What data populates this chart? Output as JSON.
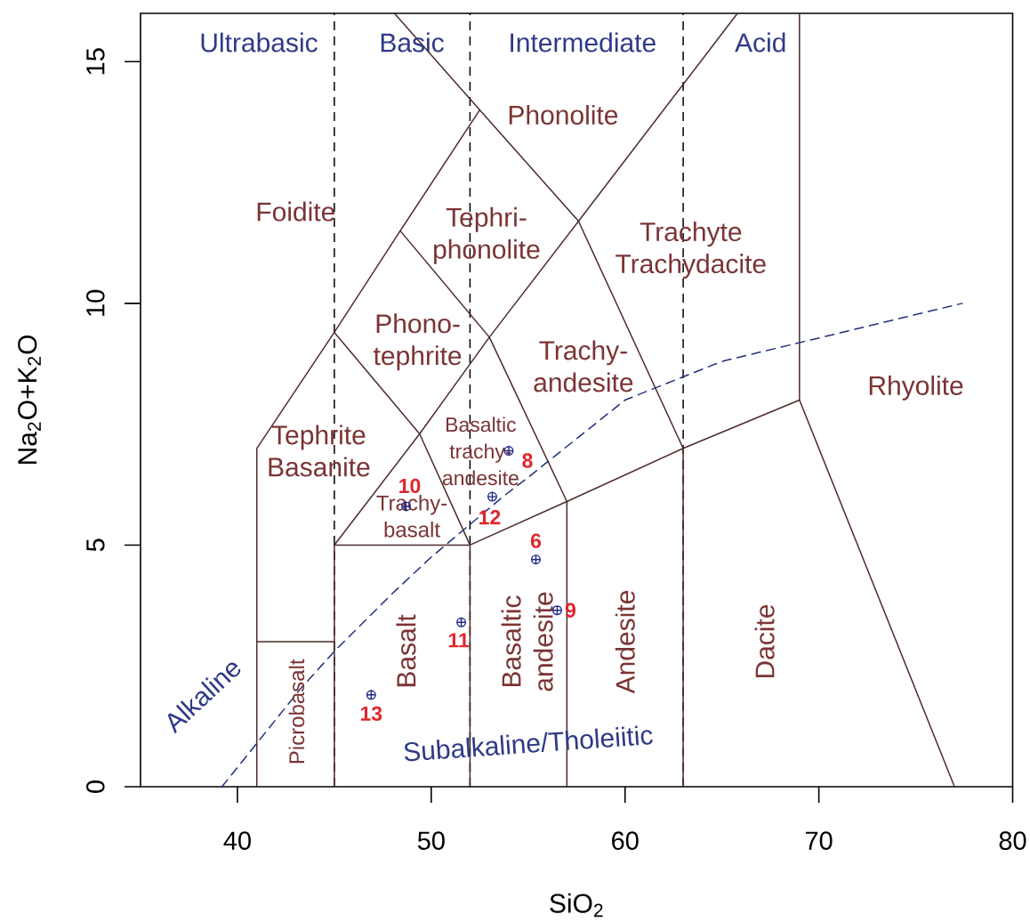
{
  "chart_data": {
    "type": "line",
    "xlabel": "SiO$_{2}$",
    "ylabel": "Na$_{2}$O+K$_{2}$O",
    "xlim": [
      35,
      80
    ],
    "ylim": [
      0,
      16
    ],
    "xticks": [
      40,
      50,
      60,
      70,
      80
    ],
    "yticks": [
      0,
      5,
      10,
      15
    ],
    "series": [
      {
        "color": "#4d2b2b",
        "x": [
          41,
          41,
          45,
          48.4,
          52.5
        ],
        "values": [
          0,
          7,
          9.4,
          11.5,
          14
        ]
      },
      {
        "color": "#4d2b2b",
        "x": [
          41,
          45
        ],
        "values": [
          3,
          3
        ]
      },
      {
        "color": "#4d2b2b",
        "x": [
          45,
          45,
          49.4,
          53,
          57.6,
          65.8
        ],
        "values": [
          0,
          5,
          7.3,
          9.3,
          11.7,
          16
        ]
      },
      {
        "color": "#4d2b2b",
        "x": [
          45,
          52,
          57,
          63,
          69,
          77
        ],
        "values": [
          5,
          5,
          5.9,
          7,
          8,
          0
        ]
      },
      {
        "color": "#4d2b2b",
        "x": [
          52,
          52,
          49.4,
          45
        ],
        "values": [
          0,
          5,
          7.3,
          9.4
        ]
      },
      {
        "color": "#4d2b2b",
        "x": [
          57,
          57,
          53,
          48.4
        ],
        "values": [
          0,
          5.9,
          9.3,
          11.5
        ]
      },
      {
        "color": "#4d2b2b",
        "x": [
          63,
          63,
          57.6,
          52.5,
          48.1
        ],
        "values": [
          0,
          7,
          11.7,
          14,
          16
        ]
      },
      {
        "color": "#4d2b2b",
        "x": [
          69,
          69
        ],
        "values": [
          8,
          16
        ]
      },
      {
        "color": "#23307a",
        "line_style": "dashed",
        "x": [
          39.2,
          40,
          43.2,
          45,
          48,
          50,
          53.7,
          55,
          60,
          65,
          77.4
        ],
        "values": [
          0,
          0.4,
          2,
          2.8,
          4,
          4.75,
          6,
          6.4,
          8,
          8.8,
          10
        ]
      },
      {
        "type": "scatter",
        "marker": "cross",
        "color": "#1f2a8a",
        "x": [
          54.0,
          53.15,
          48.7,
          55.4,
          56.5,
          51.55,
          46.9
        ],
        "values": [
          6.95,
          6.0,
          5.8,
          4.7,
          3.65,
          3.4,
          1.9
        ]
      }
    ],
    "ref_lines": [
      {
        "axis": "x",
        "value": 45,
        "line_style": "dashed",
        "color": "#000000"
      },
      {
        "axis": "x",
        "value": 52,
        "line_style": "dashed",
        "color": "#000000"
      },
      {
        "axis": "x",
        "value": 63,
        "line_style": "dashed",
        "color": "#000000"
      }
    ],
    "annotations": [
      "Ultrabasic",
      "Basic",
      "Intermediate",
      "Acid",
      "Alkaline",
      "Subalkaline/Tholeiitic",
      "Foidite",
      "Phonolite",
      "Tephri-phonolite",
      "Trachyte Trachydacite",
      "Phono-tephrite",
      "Trachy-andesite",
      "Rhyolite",
      "Tephrite Basanite",
      "Basaltic trachy-andesite",
      "Trachy-basalt",
      "Picrobasalt",
      "Basalt",
      "Basaltic andesite",
      "Andesite",
      "Dacite",
      {
        "text": "8",
        "x": 54.0,
        "y": 6.95
      },
      {
        "text": "12",
        "x": 53.15,
        "y": 6.0
      },
      {
        "text": "10",
        "x": 48.7,
        "y": 5.8
      },
      {
        "text": "6",
        "x": 55.4,
        "y": 4.7
      },
      {
        "text": "9",
        "x": 56.5,
        "y": 3.65
      },
      {
        "text": "11",
        "x": 51.55,
        "y": 3.4
      },
      {
        "text": "13",
        "x": 46.9,
        "y": 1.9
      }
    ]
  }
}
